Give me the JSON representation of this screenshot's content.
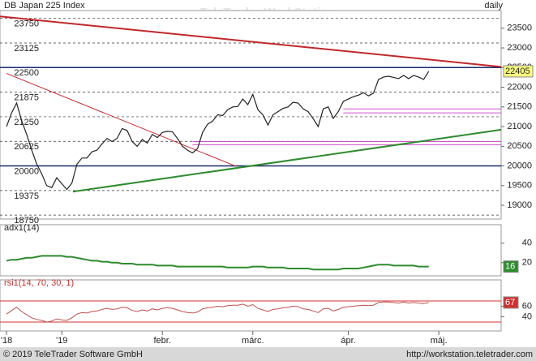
{
  "chart_data": [
    {
      "type": "line",
      "title": "DB Japan 225 Index",
      "interval": "daily",
      "color": "#222222",
      "values": [
        21000,
        21350,
        21600,
        21150,
        20800,
        20400,
        20050,
        19800,
        19500,
        19450,
        19700,
        19550,
        19400,
        19560,
        20040,
        20200,
        20200,
        20360,
        20400,
        20560,
        20700,
        20620,
        20700,
        20950,
        20900,
        20620,
        20500,
        20670,
        20580,
        20800,
        20720,
        20850,
        20880,
        20870,
        20700,
        20500,
        20400,
        20330,
        20440,
        20850,
        21060,
        21140,
        21300,
        21280,
        21430,
        21500,
        21510,
        21700,
        21560,
        21820,
        21430,
        21300,
        21040,
        21300,
        21380,
        21460,
        21500,
        21620,
        21600,
        21450,
        21380,
        21200,
        21000,
        21450,
        21500,
        21210,
        21380,
        21640,
        21700,
        21760,
        21800,
        21860,
        21780,
        21850,
        22200,
        22260,
        22280,
        22250,
        22220,
        22300,
        22220,
        22300,
        22260,
        22200,
        22405
      ],
      "last_color": "#ffff80",
      "xlim": [
        -1.3,
        98.4
      ],
      "xticks": [
        {
          "value": 0,
          "label": "'18"
        },
        {
          "value": 11,
          "label": "'19"
        },
        {
          "value": 31,
          "label": "febr."
        },
        {
          "value": 49,
          "label": "márc."
        },
        {
          "value": 68,
          "label": "ápr."
        },
        {
          "value": 86,
          "label": "máj."
        }
      ],
      "ylim": [
        18650,
        23950
      ],
      "yticks": [
        19000,
        19500,
        20000,
        20500,
        21000,
        21500,
        22000,
        22500,
        23000,
        23500
      ],
      "levels": [
        23750,
        23125,
        22500,
        21875,
        21250,
        20625,
        20000,
        19375,
        18750
      ],
      "hlines": [
        {
          "value": 22500,
          "color": "#1a2a6c",
          "from": -1.3
        },
        {
          "value": 20000,
          "color": "#1a2a6c",
          "from": -1.3
        },
        {
          "value": 21450,
          "color": "#d050d0",
          "from": 67
        },
        {
          "value": 21350,
          "color": "#d050d0",
          "from": 67
        },
        {
          "value": 20620,
          "color": "#d050d0",
          "from": 37
        },
        {
          "value": 20540,
          "color": "#d050d0",
          "from": 37
        }
      ],
      "trendlines": [
        {
          "x": [
            -1.3,
            98.4
          ],
          "values": [
            23800,
            22520
          ],
          "color": "#c0282c",
          "width": 2
        },
        {
          "x": [
            0,
            45.5
          ],
          "values": [
            22350,
            20000
          ],
          "color": "#c0282c",
          "width": 1
        },
        {
          "x": [
            13.2,
            98.4
          ],
          "values": [
            19345,
            20920
          ],
          "color": "#2e8b2e",
          "width": 2
        }
      ]
    },
    {
      "type": "line",
      "title": "adx1(14)",
      "color": "#2e8b2e",
      "last_color": "#2e8b2e",
      "values": [
        22,
        23,
        23,
        24,
        25,
        25,
        26,
        27,
        27,
        27,
        27,
        27,
        26,
        26,
        25,
        24,
        23,
        22,
        22,
        21,
        21,
        20,
        20,
        19,
        19,
        19,
        18,
        18,
        18,
        18,
        17,
        17,
        17,
        17,
        16,
        16,
        16,
        16,
        16,
        16,
        16,
        16,
        16,
        16,
        15,
        15,
        15,
        15,
        15,
        16,
        16,
        16,
        15,
        15,
        15,
        15,
        14,
        14,
        14,
        14,
        14,
        13,
        13,
        13,
        13,
        13,
        13,
        14,
        14,
        14,
        14,
        15,
        16,
        17,
        18,
        18,
        18,
        17,
        17,
        17,
        17,
        17,
        16,
        16,
        16
      ],
      "ylim": [
        6.5,
        59
      ],
      "yticks": [
        20,
        40
      ]
    },
    {
      "type": "line",
      "title": "rsi1(14, 70, 30, 1)",
      "color": "#c0504d",
      "last_color": "#d03030",
      "values": [
        45,
        52,
        58,
        50,
        44,
        38,
        35,
        33,
        30,
        32,
        36,
        34,
        33,
        38,
        45,
        48,
        47,
        50,
        51,
        54,
        56,
        54,
        55,
        58,
        57,
        52,
        50,
        53,
        51,
        55,
        53,
        56,
        57,
        56,
        53,
        50,
        48,
        47,
        49,
        55,
        57,
        58,
        60,
        59,
        61,
        62,
        62,
        64,
        60,
        63,
        56,
        53,
        50,
        54,
        55,
        57,
        58,
        60,
        59,
        55,
        54,
        51,
        48,
        55,
        56,
        51,
        54,
        58,
        59,
        60,
        61,
        62,
        61,
        62,
        67,
        68,
        68,
        67,
        66,
        68,
        66,
        67,
        66,
        65,
        67
      ],
      "ylim": [
        13,
        110
      ],
      "yticks": [
        40,
        60
      ],
      "hlines": [
        {
          "value": 70,
          "color": "#d03030",
          "from": -1.3
        },
        {
          "value": 30,
          "color": "#d03030",
          "from": -1.3
        }
      ]
    }
  ],
  "watermark": "TeleTrader WorkStation",
  "footer": {
    "copyright": "© 2019 TeleTrader Software GmbH",
    "url": "http://workstation.teletrader.com"
  }
}
